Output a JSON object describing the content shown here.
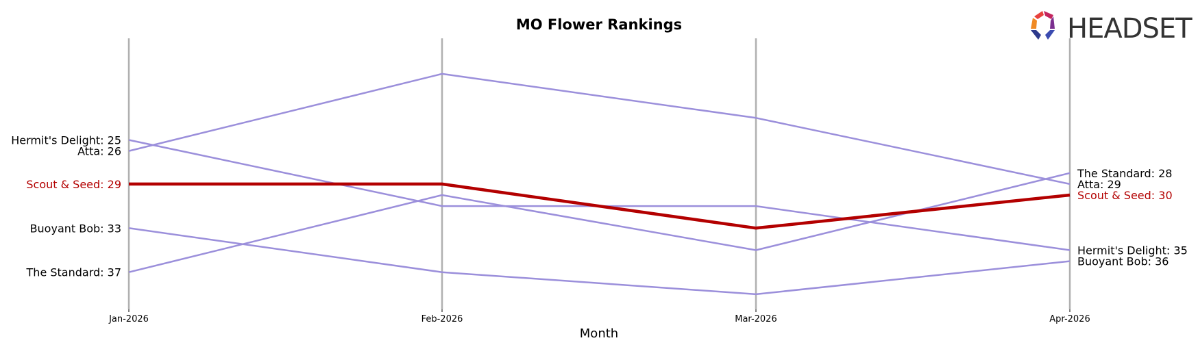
{
  "chart_data": {
    "type": "line",
    "title": "MO Flower Rankings",
    "xlabel": "Month",
    "ylabel": "",
    "y_inverted": true,
    "ylim": [
      18,
      39
    ],
    "categories": [
      "Jan-2026",
      "Feb-2026",
      "Mar-2026",
      "Apr-2026"
    ],
    "series": [
      {
        "name": "Scout & Seed",
        "values": [
          29,
          29,
          33,
          30
        ],
        "color": "#b30000",
        "highlight": true,
        "start_label": "Scout & Seed: 29",
        "end_label": "Scout & Seed: 30"
      },
      {
        "name": "Hermit's Delight",
        "values": [
          25,
          31,
          31,
          35
        ],
        "color": "#9b8fdb",
        "highlight": false,
        "start_label": "Hermit's Delight: 25",
        "end_label": "Hermit's Delight: 35"
      },
      {
        "name": "Atta",
        "values": [
          26,
          19,
          23,
          29
        ],
        "color": "#9b8fdb",
        "highlight": false,
        "start_label": "Atta: 26",
        "end_label": "Atta: 29"
      },
      {
        "name": "Buoyant Bob",
        "values": [
          33,
          37,
          39,
          36
        ],
        "color": "#9b8fdb",
        "highlight": false,
        "start_label": "Buoyant Bob: 33",
        "end_label": "Buoyant Bob: 36"
      },
      {
        "name": "The Standard",
        "values": [
          37,
          30,
          35,
          28
        ],
        "color": "#9b8fdb",
        "highlight": false,
        "start_label": "The Standard: 37",
        "end_label": "The Standard: 28"
      }
    ],
    "grid": "vertical lines at each month",
    "legend": "none (labels at line ends)"
  },
  "logo": {
    "text": "HEADSET",
    "colors": [
      "#e8413c",
      "#f08a24",
      "#c4245e",
      "#7b2f8f",
      "#2e3a8c"
    ]
  },
  "colors": {
    "highlight": "#b30000",
    "other": "#9b8fdb",
    "gridline": "#b0b0b0"
  }
}
